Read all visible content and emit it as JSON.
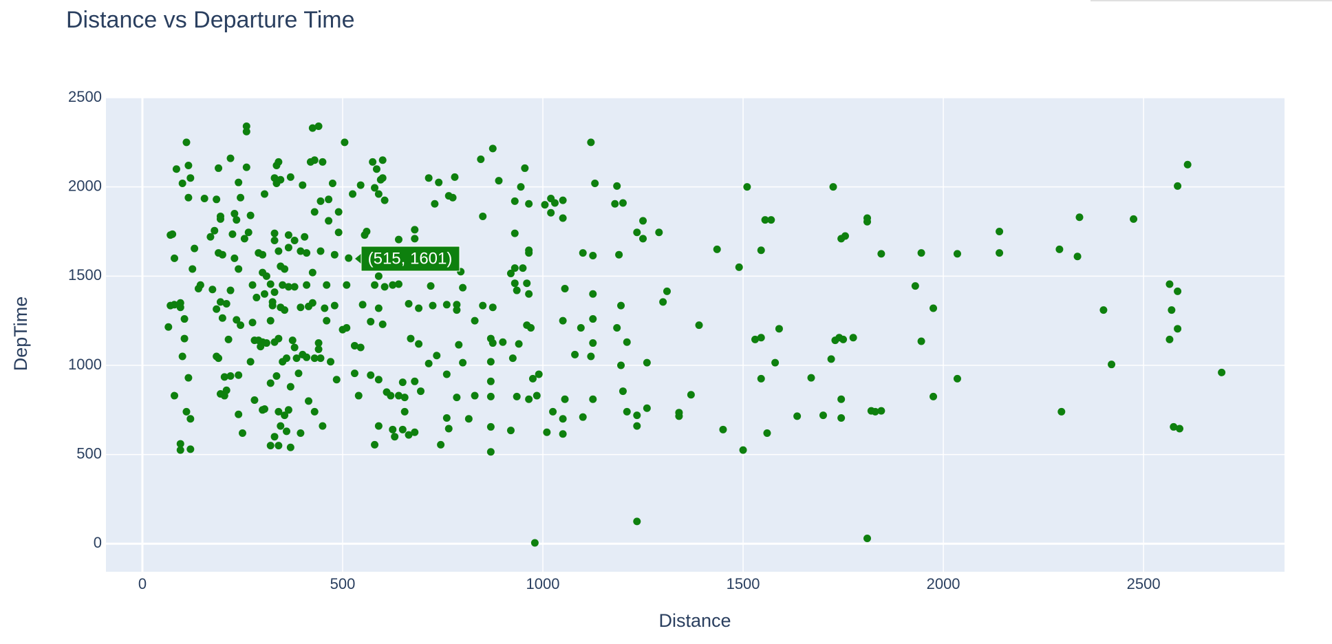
{
  "chart_data": {
    "type": "scatter",
    "title": "Distance vs Departure Time",
    "x_label": "Distance",
    "y_label": "DepTime",
    "color": "#0e800e",
    "grid": true,
    "hover_label": "(515, 1601)",
    "xlim": [
      -91,
      2852
    ],
    "ylim": [
      -157,
      2500
    ],
    "xticks": [
      0,
      500,
      1000,
      1500,
      2000,
      2500
    ],
    "yticks": [
      0,
      500,
      1000,
      1500,
      2000,
      2500
    ],
    "x": [
      1120,
      1130,
      1180,
      1185,
      1200,
      1235,
      1250,
      1250,
      1290,
      1100,
      1125,
      1190,
      1310,
      1300,
      1390,
      1125,
      1095,
      1125,
      1125,
      1120,
      1185,
      1195,
      1210,
      1195,
      1260,
      1200,
      1125,
      1100,
      1210,
      1235,
      1260,
      1235,
      1340,
      1340,
      1370,
      1235,
      1435,
      1490,
      1510,
      1545,
      1555,
      1570,
      1530,
      1545,
      1590,
      1580,
      1545,
      1450,
      1500,
      1560,
      1635,
      1670,
      1700,
      1725,
      1745,
      1755,
      1720,
      1730,
      1740,
      1750,
      1775,
      1745,
      1745,
      1810,
      1810,
      1845,
      1820,
      1830,
      1845,
      1810,
      1930,
      1945,
      1945,
      1975,
      1975,
      2035,
      2035,
      2140,
      2140,
      2290,
      2295,
      2340,
      2335,
      2400,
      2420,
      2475,
      2565,
      2570,
      2565,
      2585,
      2585,
      2585,
      2610,
      2575,
      2590,
      2695,
      515,
      505,
      525,
      545,
      560,
      575,
      585,
      590,
      595,
      600,
      605,
      580,
      600,
      555,
      590,
      590,
      580,
      605,
      625,
      640,
      680,
      680,
      715,
      740,
      765,
      780,
      775,
      730,
      850,
      845,
      875,
      890,
      930,
      945,
      955,
      965,
      965,
      965,
      930,
      920,
      930,
      950,
      930,
      960,
      935,
      965,
      795,
      800,
      785,
      760,
      785,
      720,
      725,
      690,
      665,
      640,
      600,
      570,
      530,
      545,
      550,
      510,
      510,
      500,
      590,
      670,
      690,
      715,
      735,
      760,
      790,
      800,
      830,
      850,
      875,
      870,
      875,
      870,
      900,
      925,
      940,
      960,
      970,
      985,
      990,
      975,
      965,
      935,
      920,
      870,
      870,
      830,
      785,
      760,
      765,
      745,
      815,
      870,
      870,
      980,
      695,
      680,
      650,
      640,
      655,
      625,
      630,
      650,
      680,
      665,
      590,
      580,
      620,
      590,
      570,
      540,
      530,
      610,
      655,
      1005,
      1020,
      1030,
      1050,
      1020,
      1050,
      1055,
      1050,
      1080,
      1010,
      1025,
      1050,
      1050,
      1055,
      70,
      75,
      80,
      80,
      85,
      70,
      80,
      95,
      95,
      65,
      100,
      100,
      105,
      105,
      110,
      115,
      115,
      120,
      125,
      115,
      110,
      120,
      95,
      95,
      120,
      130,
      140,
      145,
      155,
      170,
      175,
      180,
      185,
      185,
      190,
      195,
      195,
      190,
      200,
      195,
      200,
      210,
      185,
      190,
      195,
      205,
      205,
      220,
      210,
      215,
      220,
      225,
      230,
      220,
      230,
      235,
      240,
      245,
      240,
      235,
      245,
      240,
      240,
      250,
      255,
      265,
      260,
      260,
      260,
      270,
      275,
      280,
      290,
      295,
      300,
      300,
      305,
      305,
      310,
      320,
      325,
      330,
      325,
      320,
      330,
      335,
      335,
      340,
      345,
      330,
      330,
      340,
      345,
      355,
      350,
      345,
      355,
      365,
      365,
      365,
      370,
      380,
      380,
      330,
      340,
      310,
      300,
      305,
      320,
      330,
      340,
      345,
      340,
      355,
      335,
      350,
      360,
      360,
      365,
      370,
      370,
      375,
      380,
      385,
      390,
      395,
      400,
      405,
      410,
      410,
      415,
      420,
      425,
      430,
      430,
      425,
      425,
      430,
      440,
      445,
      450,
      445,
      440,
      440,
      445,
      455,
      460,
      460,
      465,
      465,
      470,
      475,
      480,
      480,
      485,
      490,
      490,
      450,
      430,
      410,
      400,
      415,
      395,
      395,
      280,
      285,
      275,
      290,
      270,
      300,
      320
    ],
    "y": [
      2250,
      2020,
      1905,
      2005,
      1910,
      1745,
      1810,
      1710,
      1745,
      1630,
      1615,
      1620,
      1415,
      1355,
      1225,
      1400,
      1210,
      1260,
      1125,
      1050,
      1210,
      1335,
      1130,
      1000,
      1015,
      855,
      810,
      710,
      740,
      720,
      760,
      660,
      735,
      715,
      835,
      125,
      1650,
      1550,
      2000,
      1645,
      1815,
      1815,
      1145,
      1155,
      1205,
      1015,
      925,
      640,
      525,
      620,
      715,
      930,
      720,
      2000,
      1710,
      1725,
      1035,
      1140,
      1155,
      1145,
      1155,
      810,
      705,
      1825,
      1805,
      1625,
      745,
      740,
      745,
      30,
      1445,
      1630,
      1135,
      1320,
      825,
      1625,
      925,
      1750,
      1630,
      1650,
      740,
      1830,
      1610,
      1310,
      1005,
      1820,
      1455,
      1310,
      1145,
      1415,
      1205,
      2005,
      2125,
      655,
      645,
      960,
      1601,
      2250,
      1960,
      2010,
      1750,
      2140,
      2100,
      1960,
      2040,
      2150,
      1925,
      1995,
      2050,
      1730,
      1600,
      1500,
      1450,
      1440,
      1450,
      1705,
      1760,
      1710,
      2050,
      2025,
      1950,
      2055,
      1940,
      1905,
      1835,
      2155,
      2215,
      2035,
      1920,
      2000,
      2105,
      1905,
      1645,
      1630,
      1740,
      1515,
      1545,
      1545,
      1460,
      1460,
      1420,
      1400,
      1525,
      1435,
      1340,
      1340,
      1310,
      1445,
      1335,
      1320,
      1345,
      1455,
      1230,
      1245,
      1110,
      1100,
      1340,
      1450,
      1210,
      1200,
      1320,
      1150,
      1120,
      1010,
      1055,
      950,
      1115,
      1015,
      1250,
      1335,
      1325,
      1150,
      1125,
      1020,
      1130,
      1040,
      1120,
      1225,
      1210,
      830,
      950,
      925,
      810,
      825,
      635,
      825,
      910,
      830,
      820,
      705,
      645,
      555,
      700,
      655,
      515,
      5,
      855,
      910,
      905,
      830,
      740,
      640,
      600,
      640,
      625,
      610,
      660,
      555,
      830,
      920,
      945,
      830,
      955,
      850,
      820,
      1900,
      1935,
      1910,
      1925,
      1855,
      1825,
      1430,
      1250,
      1060,
      625,
      740,
      700,
      615,
      810,
      1730,
      1735,
      1600,
      830,
      2100,
      1335,
      1340,
      1350,
      1325,
      1215,
      2020,
      1050,
      1150,
      1260,
      2250,
      1940,
      2120,
      2050,
      1540,
      930,
      740,
      700,
      560,
      525,
      530,
      1655,
      1430,
      1450,
      1935,
      1720,
      1425,
      1755,
      1315,
      1930,
      2105,
      1820,
      1835,
      1630,
      1620,
      1355,
      1265,
      1345,
      1050,
      1040,
      840,
      830,
      935,
      940,
      860,
      1145,
      1420,
      1735,
      1600,
      2160,
      1850,
      1815,
      2025,
      1940,
      1540,
      1255,
      1225,
      945,
      725,
      620,
      1710,
      1745,
      2110,
      2310,
      2340,
      1840,
      1450,
      805,
      1140,
      1105,
      1620,
      1520,
      1400,
      1960,
      1500,
      1455,
      1335,
      1410,
      1355,
      1250,
      2050,
      2020,
      2120,
      2140,
      2040,
      1740,
      1700,
      1640,
      1555,
      1540,
      1450,
      1325,
      1310,
      1730,
      1660,
      1440,
      2055,
      1700,
      1440,
      1130,
      1150,
      1125,
      1130,
      755,
      550,
      600,
      550,
      660,
      740,
      720,
      940,
      1020,
      630,
      1040,
      750,
      880,
      540,
      1140,
      1100,
      1040,
      955,
      620,
      2010,
      1720,
      1630,
      1450,
      1330,
      2140,
      2330,
      2150,
      1860,
      1520,
      1350,
      1040,
      2340,
      1920,
      2140,
      1640,
      1125,
      1090,
      1040,
      1320,
      1450,
      1250,
      1930,
      1810,
      1020,
      2020,
      1620,
      1335,
      920,
      1745,
      1860,
      660,
      740,
      1045,
      1060,
      800,
      1640,
      1325,
      1140,
      1380,
      1240,
      1630,
      1020,
      750,
      900
    ]
  }
}
